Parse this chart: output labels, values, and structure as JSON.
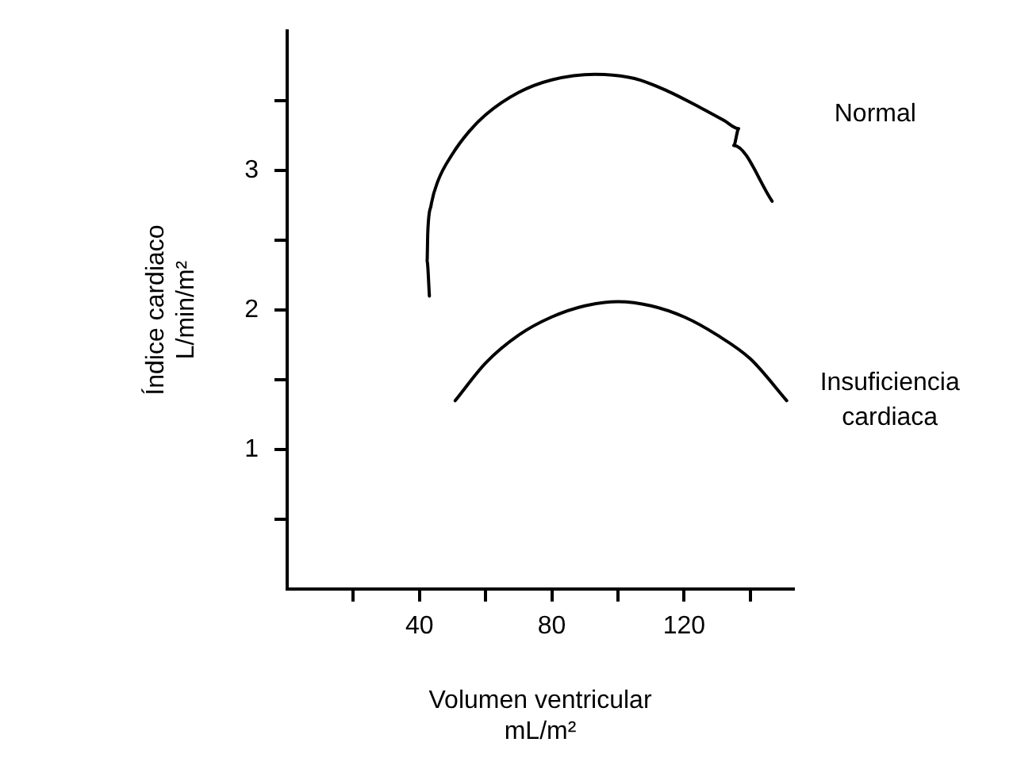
{
  "chart_data": {
    "type": "line",
    "xlabel": "Volumen ventricular\nmL/m²",
    "ylabel": "Índice cardiaco\nL/min/m²",
    "xlim": [
      0,
      153
    ],
    "xticks": [
      {
        "value": 20,
        "label": null
      },
      40,
      {
        "value": 60,
        "label": null
      },
      80,
      {
        "value": 100,
        "label": null
      },
      120,
      {
        "value": 140,
        "label": null
      }
    ],
    "ylim": [
      0,
      4
    ],
    "yticks": [
      {
        "value": 0.5,
        "label": null
      },
      1,
      {
        "value": 1.5,
        "label": null
      },
      2,
      {
        "value": 2.5,
        "label": null
      },
      3,
      {
        "value": 3.5,
        "label": null
      }
    ],
    "grid": false,
    "legend": false,
    "marker": "none",
    "line_style": "solid",
    "series": [
      {
        "name": "Normal",
        "color": "#000000",
        "x": [
          43,
          42.3,
          42.5,
          43.5,
          45.5,
          50,
          55,
          60,
          70,
          80,
          93,
          105,
          115,
          125,
          132,
          136.5,
          135,
          146.6
        ],
        "values": [
          2.1,
          2.35,
          2.55,
          2.75,
          2.92,
          3.12,
          3.28,
          3.4,
          3.56,
          3.65,
          3.69,
          3.66,
          3.57,
          3.45,
          3.36,
          3.3,
          3.18,
          2.78
        ]
      },
      {
        "name": "Insuficiencia cardiaca",
        "color": "#000000",
        "x": [
          50.8,
          60,
          70,
          80,
          90,
          100,
          110,
          120,
          130,
          140,
          151
        ],
        "values": [
          1.35,
          1.62,
          1.82,
          1.95,
          2.03,
          2.06,
          2.03,
          1.95,
          1.82,
          1.65,
          1.35
        ]
      }
    ]
  }
}
